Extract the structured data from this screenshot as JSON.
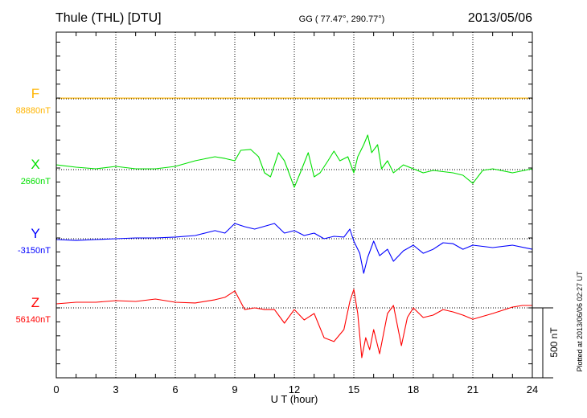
{
  "chart_data": {
    "type": "line",
    "title": "Thule (THL)  [DTU]",
    "subtitle": "GG ( 77.47°, 290.77°)",
    "date": "2013/05/06",
    "xlabel": "U T (hour)",
    "xlim": [
      0,
      24
    ],
    "x_ticks": [
      "0",
      "3",
      "6",
      "9",
      "12",
      "15",
      "18",
      "21",
      "24"
    ],
    "scale_bar_label": "500 nT",
    "scale_bar_nT": 500,
    "footer": "Plotted at 2013/06/06 02:27 UT",
    "grid": true,
    "series": [
      {
        "name": "F",
        "baseline_label": "88880nT",
        "color": "#ffb400",
        "points": [
          [
            0,
            5
          ],
          [
            24,
            5
          ]
        ]
      },
      {
        "name": "X",
        "baseline_label": "2660nT",
        "color": "#00e000",
        "points": [
          [
            0,
            34
          ],
          [
            1,
            17
          ],
          [
            2,
            6
          ],
          [
            3,
            23
          ],
          [
            4,
            6
          ],
          [
            5,
            6
          ],
          [
            6,
            23
          ],
          [
            7,
            63
          ],
          [
            8,
            92
          ],
          [
            8.5,
            80
          ],
          [
            9,
            63
          ],
          [
            9.3,
            138
          ],
          [
            9.8,
            144
          ],
          [
            10.2,
            92
          ],
          [
            10.5,
            -23
          ],
          [
            10.8,
            -52
          ],
          [
            11.2,
            121
          ],
          [
            11.5,
            63
          ],
          [
            12,
            -127
          ],
          [
            12.3,
            -23
          ],
          [
            12.7,
            121
          ],
          [
            13,
            -52
          ],
          [
            13.3,
            -23
          ],
          [
            13.7,
            63
          ],
          [
            14,
            132
          ],
          [
            14.3,
            63
          ],
          [
            14.7,
            92
          ],
          [
            15,
            -23
          ],
          [
            15.2,
            92
          ],
          [
            15.5,
            178
          ],
          [
            15.7,
            247
          ],
          [
            15.9,
            121
          ],
          [
            16.2,
            178
          ],
          [
            16.4,
            6
          ],
          [
            16.7,
            63
          ],
          [
            17,
            -23
          ],
          [
            17.5,
            34
          ],
          [
            18,
            6
          ],
          [
            18.5,
            -23
          ],
          [
            19,
            -6
          ],
          [
            20,
            -23
          ],
          [
            20.5,
            -40
          ],
          [
            21,
            -98
          ],
          [
            21.5,
            -6
          ],
          [
            22,
            6
          ],
          [
            23,
            -23
          ],
          [
            24,
            6
          ]
        ]
      },
      {
        "name": "Y",
        "baseline_label": "-3150nT",
        "color": "#0000ff",
        "points": [
          [
            0,
            -6
          ],
          [
            1,
            -12
          ],
          [
            2,
            -6
          ],
          [
            3,
            0
          ],
          [
            4,
            6
          ],
          [
            5,
            6
          ],
          [
            6,
            12
          ],
          [
            7,
            23
          ],
          [
            8,
            58
          ],
          [
            8.5,
            40
          ],
          [
            9,
            109
          ],
          [
            9.5,
            86
          ],
          [
            10,
            69
          ],
          [
            11,
            109
          ],
          [
            11.5,
            40
          ],
          [
            12,
            58
          ],
          [
            12.5,
            23
          ],
          [
            13,
            40
          ],
          [
            13.5,
            0
          ],
          [
            14,
            17
          ],
          [
            14.5,
            12
          ],
          [
            14.8,
            69
          ],
          [
            15,
            -17
          ],
          [
            15.3,
            -104
          ],
          [
            15.5,
            -247
          ],
          [
            15.7,
            -132
          ],
          [
            16,
            -17
          ],
          [
            16.3,
            -121
          ],
          [
            16.7,
            -75
          ],
          [
            17,
            -161
          ],
          [
            17.5,
            -86
          ],
          [
            18,
            -46
          ],
          [
            18.5,
            -104
          ],
          [
            19,
            -75
          ],
          [
            19.5,
            -29
          ],
          [
            20,
            -35
          ],
          [
            20.5,
            -75
          ],
          [
            21,
            -46
          ],
          [
            22,
            -63
          ],
          [
            23,
            -46
          ],
          [
            24,
            -75
          ]
        ]
      },
      {
        "name": "Z",
        "baseline_label": "56140nT",
        "color": "#ff0000",
        "points": [
          [
            0,
            29
          ],
          [
            1,
            40
          ],
          [
            2,
            40
          ],
          [
            3,
            52
          ],
          [
            4,
            46
          ],
          [
            5,
            63
          ],
          [
            6,
            40
          ],
          [
            7,
            35
          ],
          [
            8,
            58
          ],
          [
            8.5,
            75
          ],
          [
            9,
            121
          ],
          [
            9.5,
            -12
          ],
          [
            10,
            0
          ],
          [
            10.5,
            -12
          ],
          [
            11,
            -12
          ],
          [
            11.5,
            -109
          ],
          [
            12,
            -12
          ],
          [
            12.5,
            -86
          ],
          [
            13,
            -40
          ],
          [
            13.5,
            -213
          ],
          [
            14,
            -241
          ],
          [
            14.5,
            -155
          ],
          [
            14.8,
            46
          ],
          [
            15,
            132
          ],
          [
            15.2,
            -40
          ],
          [
            15.4,
            -356
          ],
          [
            15.6,
            -213
          ],
          [
            15.8,
            -299
          ],
          [
            16,
            -155
          ],
          [
            16.3,
            -328
          ],
          [
            16.7,
            -40
          ],
          [
            17,
            17
          ],
          [
            17.4,
            -270
          ],
          [
            17.7,
            -69
          ],
          [
            18,
            0
          ],
          [
            18.5,
            -69
          ],
          [
            19,
            -52
          ],
          [
            19.5,
            -12
          ],
          [
            20,
            -29
          ],
          [
            20.5,
            -52
          ],
          [
            21,
            -81
          ],
          [
            22,
            -40
          ],
          [
            23,
            6
          ],
          [
            23.5,
            17
          ],
          [
            24,
            17
          ]
        ]
      }
    ]
  }
}
